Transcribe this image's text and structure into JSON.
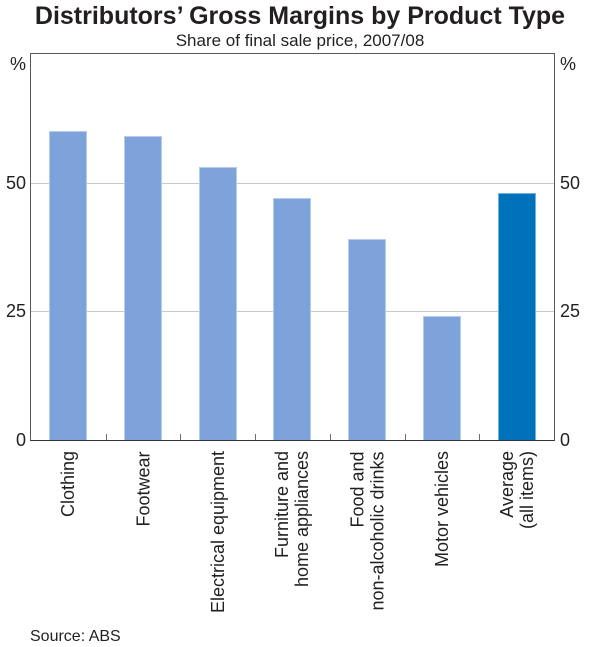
{
  "header": {
    "title": "Distributors’ Gross Margins by Product Type",
    "subtitle": "Share of final sale price, 2007/08"
  },
  "axis": {
    "unit_left": "%",
    "unit_right": "%"
  },
  "footer": {
    "source": "Source: ABS"
  },
  "colors": {
    "bar_light": "#7DA3DA",
    "bar_dark": "#0072BC",
    "frame": "#58585a",
    "gridline": "#c8c8c8",
    "text": "#231f20"
  },
  "chart_data": {
    "type": "bar",
    "title": "Distributors’ Gross Margins by Product Type",
    "subtitle": "Share of final sale price, 2007/08",
    "categories": [
      "Clothing",
      "Footwear",
      "Electrical equipment",
      "Furniture and\nhome appliances",
      "Food and\nnon-alcoholic drinks",
      "Motor vehicles",
      "Average\n(all items)"
    ],
    "values": [
      60,
      59,
      53,
      47,
      39,
      24,
      48
    ],
    "bar_colors": [
      "#7DA3DA",
      "#7DA3DA",
      "#7DA3DA",
      "#7DA3DA",
      "#7DA3DA",
      "#7DA3DA",
      "#0072BC"
    ],
    "xlabel": "",
    "ylabel": "%",
    "ylim": [
      0,
      75
    ],
    "yticks": [
      0,
      25,
      50
    ],
    "gridlines": [
      25,
      50
    ],
    "grid": true,
    "legend": "none",
    "tick_labels_both_sides": true
  }
}
